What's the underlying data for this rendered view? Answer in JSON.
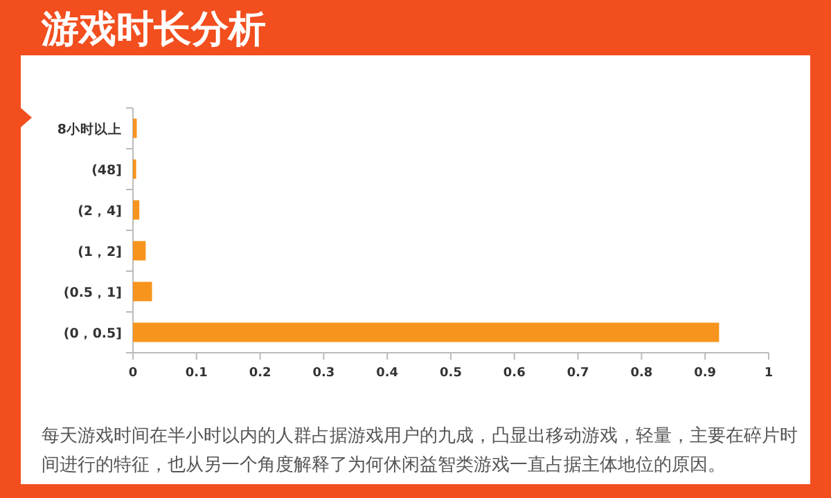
{
  "chart_data": {
    "type": "bar",
    "orientation": "horizontal",
    "title": "游戏时长分析",
    "categories": [
      "8小时以上",
      "(48]",
      "(2，4]",
      "(1，2]",
      "(0.5，1]",
      "(0，0.5]"
    ],
    "values": [
      0.006,
      0.005,
      0.01,
      0.02,
      0.03,
      0.922
    ],
    "color": "#f7941d",
    "xlim": [
      0,
      1
    ],
    "xticks": [
      0,
      0.1,
      0.2,
      0.3,
      0.4,
      0.5,
      0.6,
      0.7,
      0.8,
      0.9,
      1
    ],
    "annotations": [
      "每天游戏时间在半小时以内的人群占据游戏用户的九成，凸显出移动游戏，轻量，主要在碎片时间进行的特征，也从另一个角度解释了为何休闲益智类游戏一直占据主体地位的原因。"
    ]
  }
}
